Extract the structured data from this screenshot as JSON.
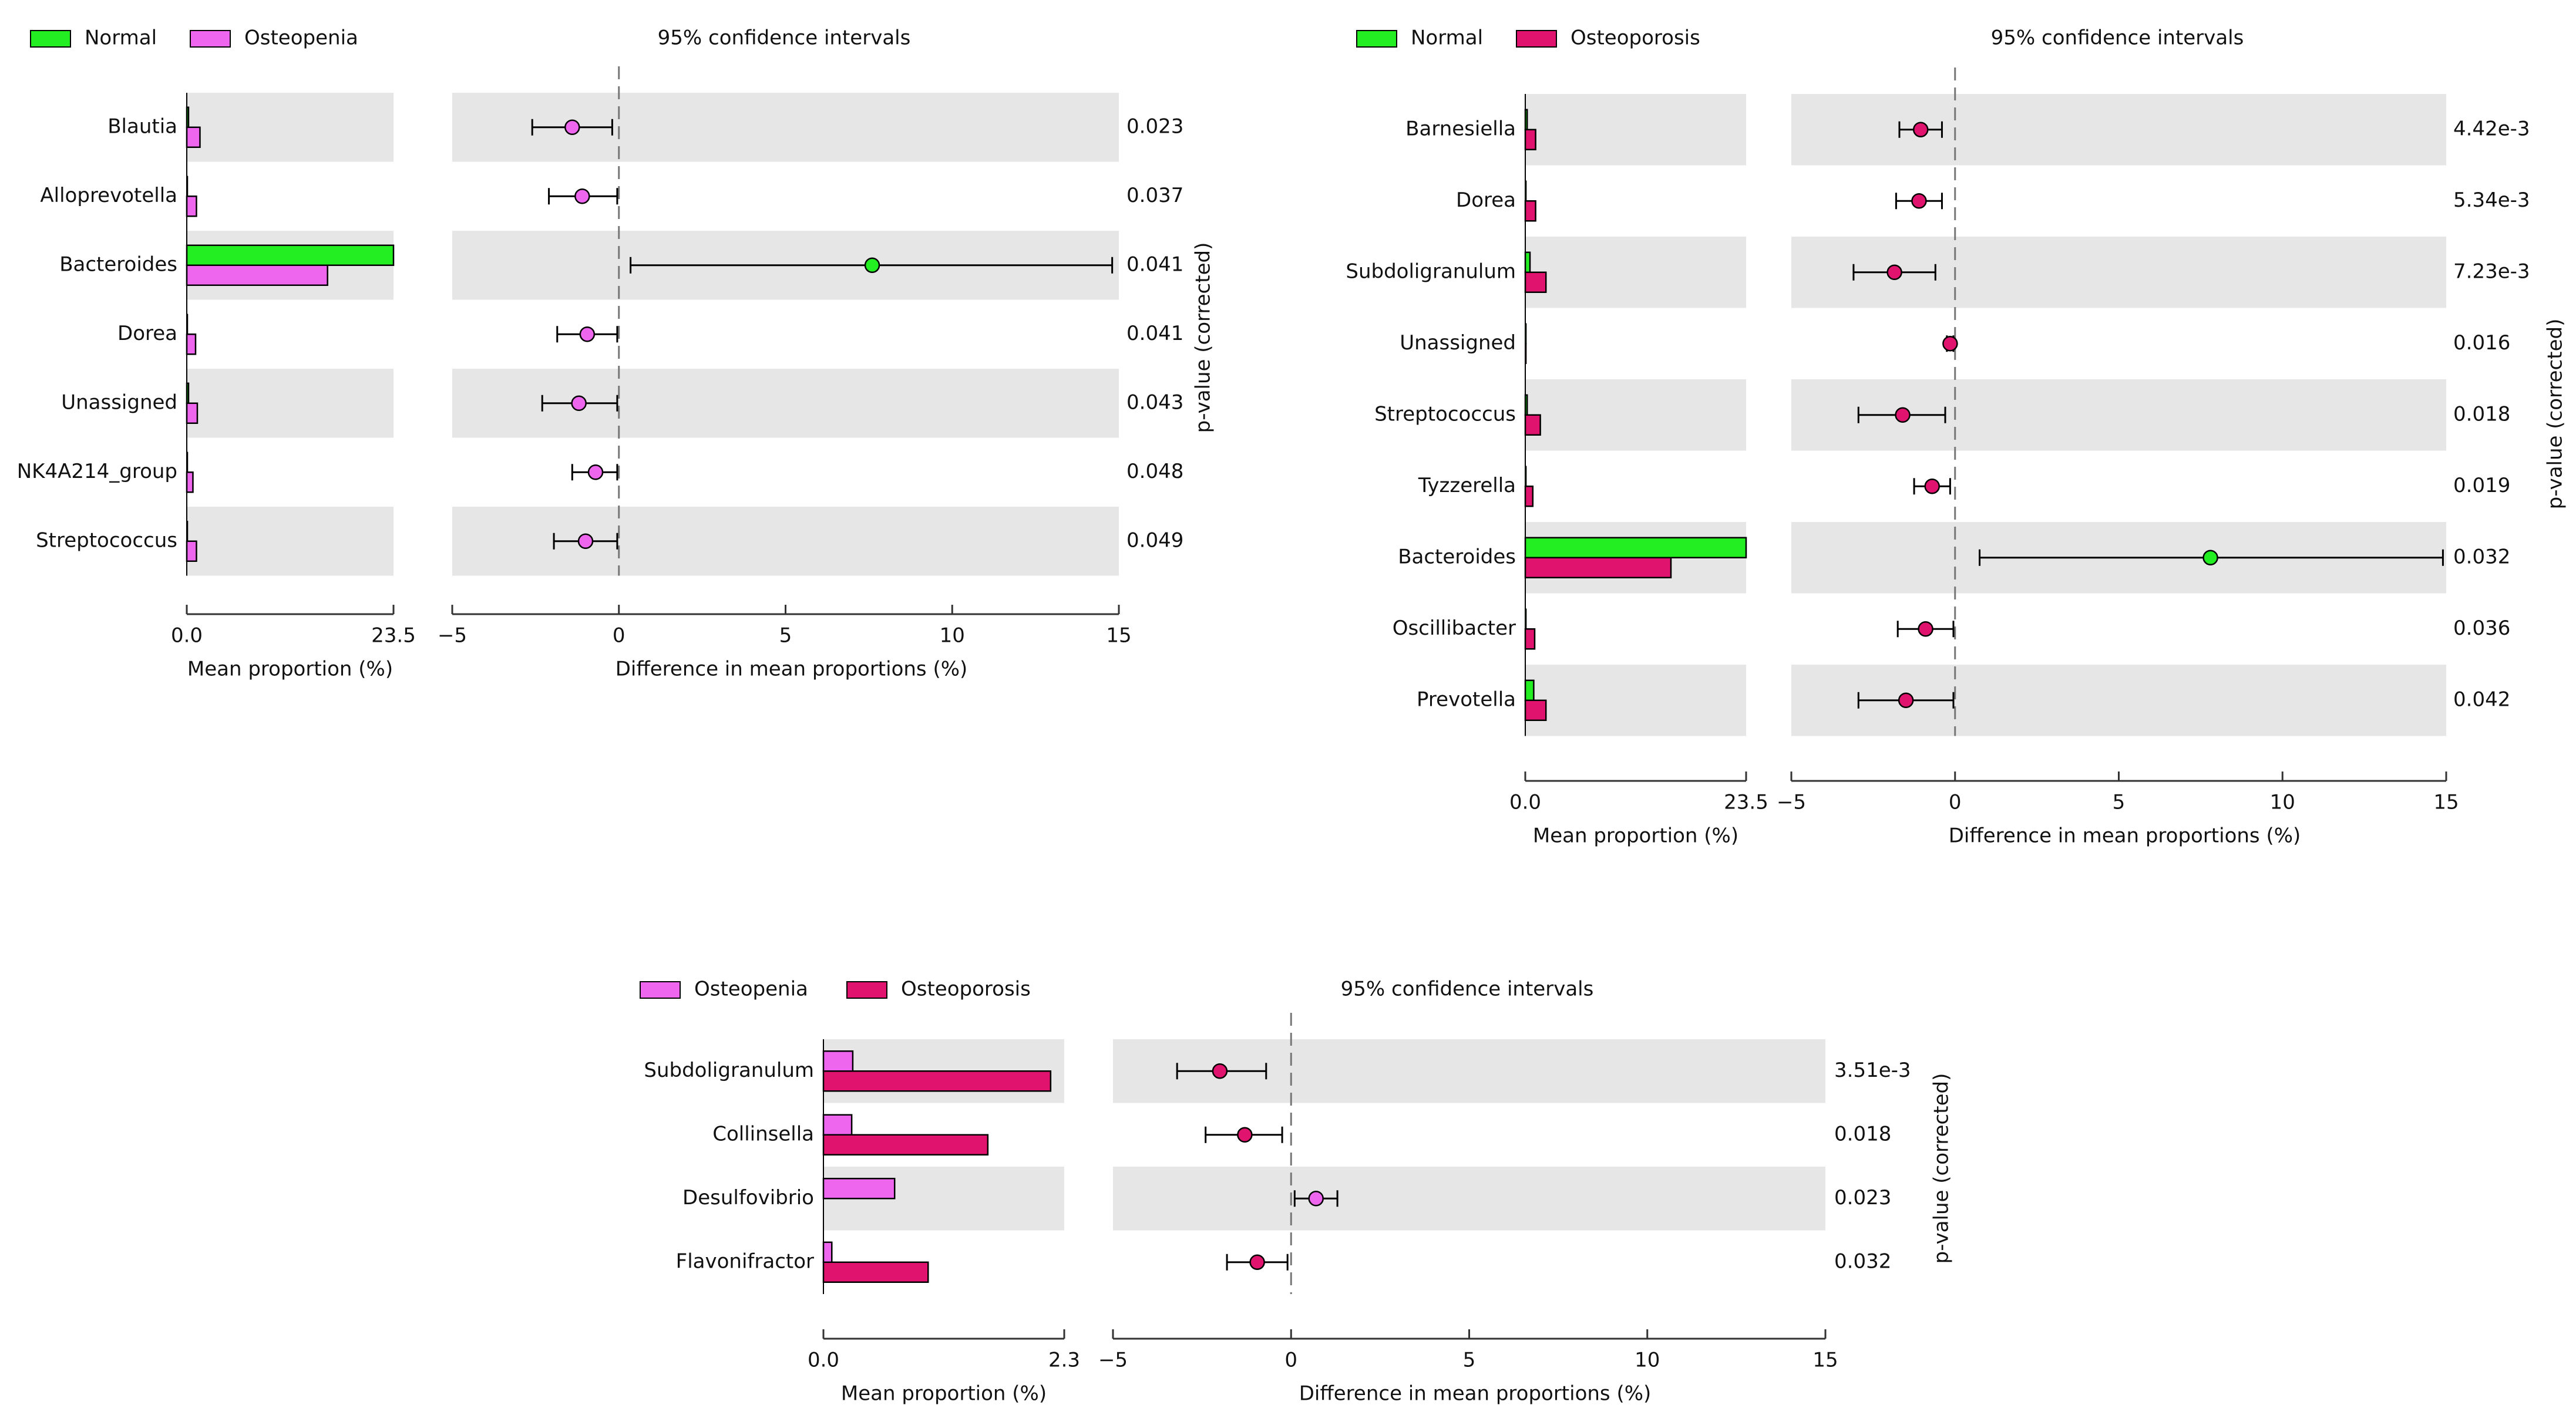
{
  "colors": {
    "normal": "#22ee22",
    "osteopenia": "#ee66ee",
    "osteoporosis": "#e0146e",
    "band": "#e6e6e6",
    "axis": "#333333",
    "zero_line": "#777777"
  },
  "chart_data": [
    {
      "type": "bar",
      "id": "normal-vs-osteopenia",
      "title": "95% confidence intervals",
      "legend": [
        {
          "name": "Normal",
          "color": "#22ee22"
        },
        {
          "name": "Osteopenia",
          "color": "#ee66ee"
        }
      ],
      "categories": [
        "Blautia",
        "Alloprevotella",
        "Bacteroides",
        "Dorea",
        "Unassigned",
        "NK4A214_group",
        "Streptococcus"
      ],
      "series": [
        {
          "name": "Normal",
          "values": [
            0.2,
            0.1,
            23.5,
            0.1,
            0.2,
            0.1,
            0.1
          ]
        },
        {
          "name": "Osteopenia",
          "values": [
            1.5,
            1.1,
            16.0,
            1.0,
            1.2,
            0.7,
            1.1
          ]
        }
      ],
      "diff": [
        {
          "mean": -1.4,
          "lo": -2.6,
          "hi": -0.2,
          "group": "Osteopenia"
        },
        {
          "mean": -1.1,
          "lo": -2.1,
          "hi": -0.05,
          "group": "Osteopenia"
        },
        {
          "mean": 7.6,
          "lo": 0.35,
          "hi": 14.8,
          "group": "Normal"
        },
        {
          "mean": -0.95,
          "lo": -1.85,
          "hi": -0.05,
          "group": "Osteopenia"
        },
        {
          "mean": -1.2,
          "lo": -2.3,
          "hi": -0.05,
          "group": "Osteopenia"
        },
        {
          "mean": -0.7,
          "lo": -1.4,
          "hi": -0.05,
          "group": "Osteopenia"
        },
        {
          "mean": -1.0,
          "lo": -1.95,
          "hi": -0.05,
          "group": "Osteopenia"
        }
      ],
      "pvalues": [
        "0.023",
        "0.037",
        "0.041",
        "0.041",
        "0.043",
        "0.048",
        "0.049"
      ],
      "mean_axis": {
        "lim": [
          0,
          23.5
        ],
        "ticks": [
          "0.0",
          "23.5"
        ],
        "label": "Mean proportion (%)"
      },
      "diff_axis": {
        "lim": [
          -5,
          15
        ],
        "ticks": [
          -5,
          0,
          5,
          10,
          15
        ],
        "tick_labels": [
          "−5",
          "0",
          "5",
          "10",
          "15"
        ],
        "label": "Difference in mean proportions (%)"
      },
      "pvalue_label": "p-value (corrected)"
    },
    {
      "type": "bar",
      "id": "normal-vs-osteoporosis",
      "title": "95% confidence intervals",
      "legend": [
        {
          "name": "Normal",
          "color": "#22ee22"
        },
        {
          "name": "Osteoporosis",
          "color": "#e0146e"
        }
      ],
      "categories": [
        "Barnesiella",
        "Dorea",
        "Subdoligranulum",
        "Unassigned",
        "Streptococcus",
        "Tyzzerella",
        "Bacteroides",
        "Oscillibacter",
        "Prevotella"
      ],
      "series": [
        {
          "name": "Normal",
          "values": [
            0.2,
            0.1,
            0.5,
            0.1,
            0.2,
            0.1,
            23.5,
            0.1,
            0.9
          ]
        },
        {
          "name": "Osteoporosis",
          "values": [
            1.1,
            1.1,
            2.2,
            0.1,
            1.6,
            0.8,
            15.5,
            1.0,
            2.2
          ]
        }
      ],
      "diff": [
        {
          "mean": -1.05,
          "lo": -1.7,
          "hi": -0.4,
          "group": "Osteoporosis"
        },
        {
          "mean": -1.1,
          "lo": -1.8,
          "hi": -0.4,
          "group": "Osteoporosis"
        },
        {
          "mean": -1.85,
          "lo": -3.1,
          "hi": -0.6,
          "group": "Osteoporosis"
        },
        {
          "mean": -0.15,
          "lo": -0.25,
          "hi": -0.05,
          "group": "Osteoporosis"
        },
        {
          "mean": -1.6,
          "lo": -2.95,
          "hi": -0.3,
          "group": "Osteoporosis"
        },
        {
          "mean": -0.7,
          "lo": -1.25,
          "hi": -0.15,
          "group": "Osteoporosis"
        },
        {
          "mean": 7.8,
          "lo": 0.75,
          "hi": 14.9,
          "group": "Normal"
        },
        {
          "mean": -0.9,
          "lo": -1.75,
          "hi": -0.05,
          "group": "Osteoporosis"
        },
        {
          "mean": -1.5,
          "lo": -2.95,
          "hi": -0.05,
          "group": "Osteoporosis"
        }
      ],
      "pvalues": [
        "4.42e-3",
        "5.34e-3",
        "7.23e-3",
        "0.016",
        "0.018",
        "0.019",
        "0.032",
        "0.036",
        "0.042"
      ],
      "mean_axis": {
        "lim": [
          0,
          23.5
        ],
        "ticks": [
          "0.0",
          "23.5"
        ],
        "label": "Mean proportion (%)"
      },
      "diff_axis": {
        "lim": [
          -5,
          15
        ],
        "ticks": [
          -5,
          0,
          5,
          10,
          15
        ],
        "tick_labels": [
          "−5",
          "0",
          "5",
          "10",
          "15"
        ],
        "label": "Difference in mean proportions (%)"
      },
      "pvalue_label": "p-value (corrected)"
    },
    {
      "type": "bar",
      "id": "osteopenia-vs-osteoporosis",
      "title": "95% confidence intervals",
      "legend": [
        {
          "name": "Osteopenia",
          "color": "#ee66ee"
        },
        {
          "name": "Osteoporosis",
          "color": "#e0146e"
        }
      ],
      "categories": [
        "Subdoligranulum",
        "Collinsella",
        "Desulfovibrio",
        "Flavonifractor"
      ],
      "series": [
        {
          "name": "Osteopenia",
          "values": [
            0.28,
            0.27,
            0.68,
            0.08
          ]
        },
        {
          "name": "Osteoporosis",
          "values": [
            2.17,
            1.57,
            0.0,
            1.0
          ]
        }
      ],
      "diff": [
        {
          "mean": -2.0,
          "lo": -3.2,
          "hi": -0.7,
          "group": "Osteoporosis"
        },
        {
          "mean": -1.3,
          "lo": -2.4,
          "hi": -0.25,
          "group": "Osteoporosis"
        },
        {
          "mean": 0.7,
          "lo": 0.1,
          "hi": 1.3,
          "group": "Osteopenia"
        },
        {
          "mean": -0.95,
          "lo": -1.8,
          "hi": -0.1,
          "group": "Osteoporosis"
        }
      ],
      "pvalues": [
        "3.51e-3",
        "0.018",
        "0.023",
        "0.032"
      ],
      "mean_axis": {
        "lim": [
          0,
          2.3
        ],
        "ticks": [
          "0.0",
          "2.3"
        ],
        "label": "Mean proportion (%)"
      },
      "diff_axis": {
        "lim": [
          -5,
          15
        ],
        "ticks": [
          -5,
          0,
          5,
          10,
          15
        ],
        "tick_labels": [
          "−5",
          "0",
          "5",
          "10",
          "15"
        ],
        "label": "Difference in mean proportions (%)"
      },
      "pvalue_label": "p-value (corrected)"
    }
  ]
}
